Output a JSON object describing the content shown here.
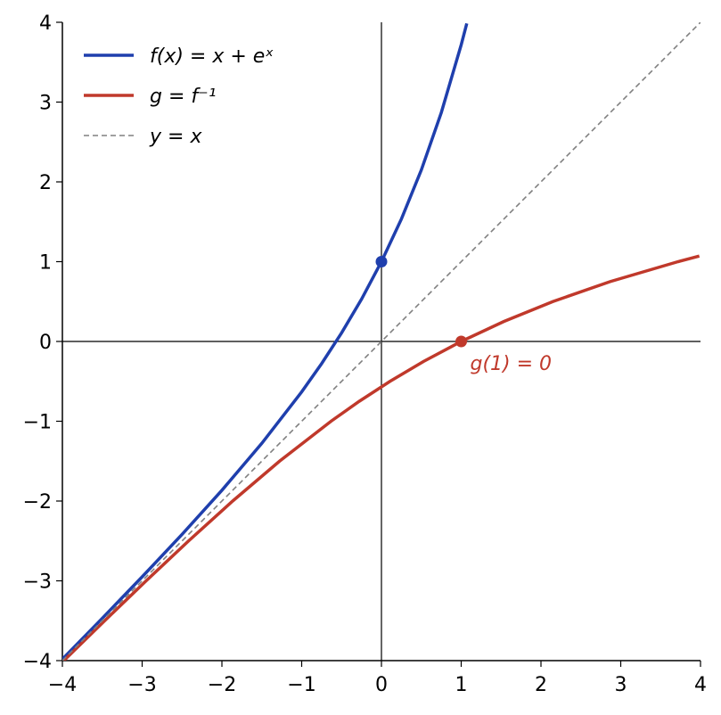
{
  "chart_data": {
    "type": "line",
    "xlim": [
      -4,
      4
    ],
    "ylim": [
      -4,
      4
    ],
    "xticks": [
      {
        "value": -4,
        "label": "−4"
      },
      {
        "value": -3,
        "label": "−3"
      },
      {
        "value": -2,
        "label": "−2"
      },
      {
        "value": -1,
        "label": "−1"
      },
      0,
      1,
      2,
      3,
      4
    ],
    "yticks": [
      {
        "value": -4,
        "label": "−4"
      },
      {
        "value": -3,
        "label": "−3"
      },
      {
        "value": -2,
        "label": "−2"
      },
      {
        "value": -1,
        "label": "−1"
      },
      0,
      1,
      2,
      3,
      4
    ],
    "legend": "upper left",
    "series": [
      {
        "name": "f(x) = x + eˣ",
        "color": "#1f3fad",
        "dash": false,
        "x": [
          -4,
          -3.5,
          -3,
          -2.5,
          -2,
          -1.5,
          -1,
          -0.75,
          -0.5,
          -0.25,
          0,
          0.25,
          0.5,
          0.75,
          1,
          1.07
        ],
        "values": [
          -3.982,
          -3.47,
          -2.95,
          -2.418,
          -1.865,
          -1.277,
          -0.632,
          -0.278,
          0.107,
          0.529,
          1,
          1.534,
          2.149,
          2.867,
          3.718,
          3.985
        ]
      },
      {
        "name": "g = f⁻¹",
        "color": "#c0392b",
        "dash": false,
        "x": [
          -3.982,
          -3.47,
          -2.95,
          -2.418,
          -1.865,
          -1.277,
          -0.632,
          -0.278,
          0.107,
          0.529,
          1,
          1.534,
          2.149,
          2.867,
          3.718,
          3.985
        ],
        "values": [
          -4,
          -3.5,
          -3,
          -2.5,
          -2,
          -1.5,
          -1,
          -0.75,
          -0.5,
          -0.25,
          0,
          0.25,
          0.5,
          0.75,
          1,
          1.07
        ]
      },
      {
        "name": "y = x",
        "color": "#808080",
        "dash": true,
        "x": [
          -4,
          4
        ],
        "values": [
          -4,
          4
        ]
      }
    ],
    "markers": [
      {
        "x": 0,
        "y": 1,
        "color": "#1f3fad"
      },
      {
        "x": 1,
        "y": 0,
        "color": "#c0392b"
      }
    ],
    "annotation": {
      "text": "g(1) = 0",
      "marker": 1
    }
  }
}
